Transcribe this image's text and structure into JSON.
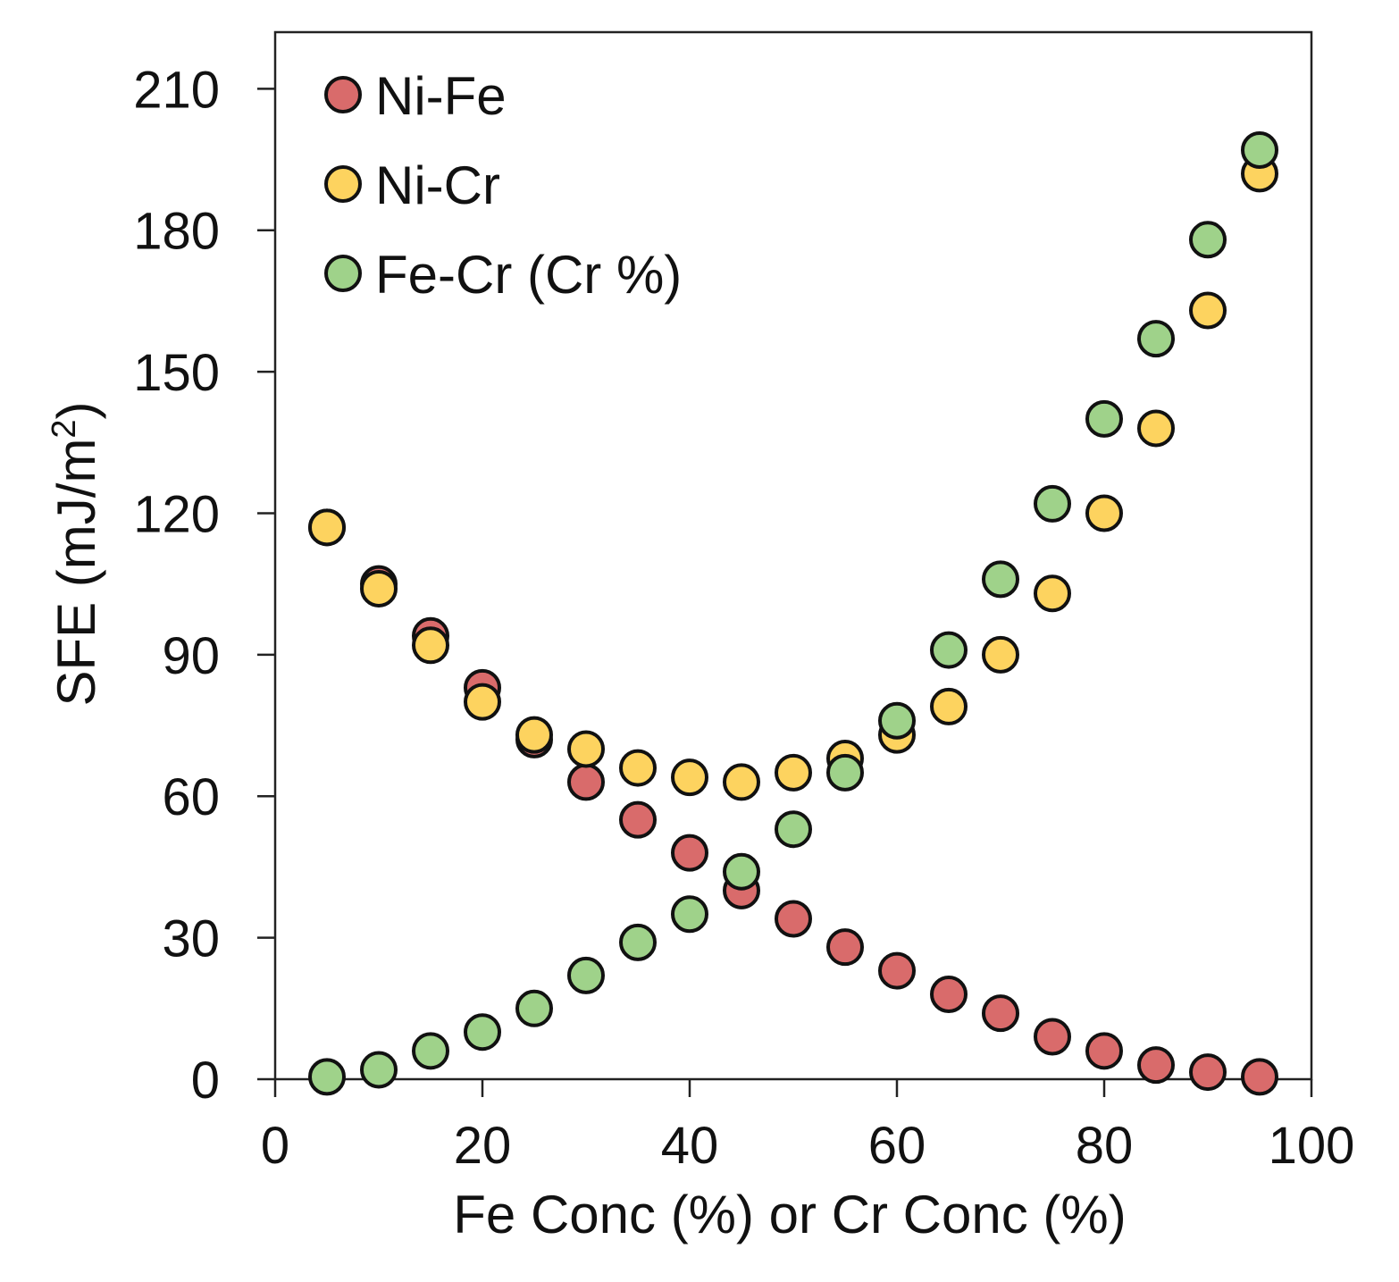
{
  "chart_data": {
    "type": "scatter",
    "title": "",
    "xlabel": "Fe Conc (%) or Cr Conc (%)",
    "ylabel_main": "SFE (mJ/m",
    "ylabel_sup": "2",
    "ylabel_close": ")",
    "xlim": [
      0,
      100
    ],
    "ylim": [
      0,
      222
    ],
    "xticks": [
      0,
      20,
      40,
      60,
      80,
      100
    ],
    "yticks": [
      0,
      30,
      60,
      90,
      120,
      150,
      180,
      210
    ],
    "grid": false,
    "legend_position": "top-left",
    "series": [
      {
        "name": "Ni-Fe",
        "color": "#d96b6b",
        "x": [
          5,
          10,
          15,
          20,
          25,
          30,
          35,
          40,
          45,
          50,
          55,
          60,
          65,
          70,
          75,
          80,
          85,
          90,
          95
        ],
        "y": [
          117,
          105,
          94,
          83,
          72,
          63,
          55,
          48,
          40,
          34,
          28,
          23,
          18,
          14,
          9,
          6,
          3,
          1.5,
          0.5
        ]
      },
      {
        "name": "Ni-Cr",
        "color": "#fdd35f",
        "x": [
          5,
          10,
          15,
          20,
          25,
          30,
          35,
          40,
          45,
          50,
          55,
          60,
          65,
          70,
          75,
          80,
          85,
          90,
          95
        ],
        "y": [
          117,
          104,
          92,
          80,
          73,
          70,
          66,
          64,
          63,
          65,
          68,
          73,
          79,
          90,
          103,
          120,
          138,
          163,
          192
        ]
      },
      {
        "name": "Fe-Cr (Cr %)",
        "color": "#9fd28a",
        "x": [
          5,
          10,
          15,
          20,
          25,
          30,
          35,
          40,
          45,
          50,
          55,
          60,
          65,
          70,
          75,
          80,
          85,
          90,
          95
        ],
        "y": [
          0.5,
          2,
          6,
          10,
          15,
          22,
          29,
          35,
          44,
          53,
          65,
          76,
          91,
          106,
          122,
          140,
          157,
          178,
          197
        ]
      }
    ]
  }
}
